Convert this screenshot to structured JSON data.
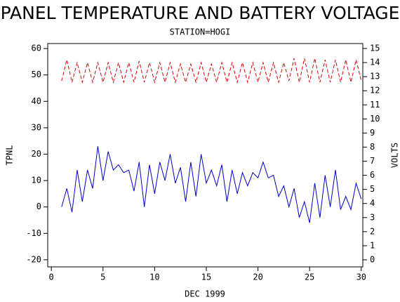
{
  "chart_data": {
    "type": "line",
    "title": "PANEL TEMPERATURE AND BATTERY VOLTAGE",
    "subtitle": "STATION=HOGI",
    "x_label": "DEC 1999",
    "y_label": "TPNL",
    "y2_label": "VOLTS",
    "x": [
      1.0,
      1.5,
      2.0,
      2.5,
      3.0,
      3.5,
      4.0,
      4.5,
      5.0,
      5.5,
      6.0,
      6.5,
      7.0,
      7.5,
      8.0,
      8.5,
      9.0,
      9.5,
      10.0,
      10.5,
      11.0,
      11.5,
      12.0,
      12.5,
      13.0,
      13.5,
      14.0,
      14.5,
      15.0,
      15.5,
      16.0,
      16.5,
      17.0,
      17.5,
      18.0,
      18.5,
      19.0,
      19.5,
      20.0,
      20.5,
      21.0,
      21.5,
      22.0,
      22.5,
      23.0,
      23.5,
      24.0,
      24.5,
      25.0,
      25.5,
      26.0,
      26.5,
      27.0,
      27.5,
      28.0,
      28.5,
      29.0,
      29.5,
      30.0
    ],
    "series": [
      {
        "name": "TPNL",
        "color": "#0000cc",
        "axis": "y",
        "dashed": false,
        "values": [
          0,
          7,
          -2,
          14,
          2,
          14,
          7,
          23,
          10,
          21,
          14,
          16,
          13,
          14,
          6,
          17,
          0,
          16,
          5,
          17,
          10,
          20,
          9,
          15,
          2,
          17,
          4,
          20,
          9,
          14,
          8,
          16,
          2,
          14,
          5,
          13,
          8,
          13,
          11,
          17,
          11,
          12,
          4,
          8,
          0,
          7,
          -4,
          2,
          -6,
          9,
          -4,
          12,
          0,
          14,
          -1,
          4,
          -1,
          9,
          3
        ]
      },
      {
        "name": "VOLTS",
        "color": "#dd0000",
        "axis": "y2",
        "dashed": true,
        "values": [
          12.7,
          14.2,
          12.6,
          14.0,
          12.6,
          14.0,
          12.6,
          14.0,
          12.6,
          14.0,
          12.6,
          14.0,
          12.6,
          14.0,
          12.6,
          14.1,
          12.6,
          14.0,
          12.6,
          14.0,
          12.6,
          14.0,
          12.6,
          13.9,
          12.6,
          13.9,
          12.6,
          14.0,
          12.6,
          13.9,
          12.6,
          14.0,
          12.6,
          14.0,
          12.6,
          14.0,
          12.6,
          14.0,
          12.6,
          14.0,
          12.6,
          14.0,
          12.6,
          14.0,
          12.7,
          14.3,
          12.6,
          14.3,
          12.6,
          14.3,
          12.6,
          14.2,
          12.6,
          14.2,
          12.6,
          14.2,
          12.6,
          14.2,
          12.7
        ]
      }
    ],
    "xlim": [
      -0.35,
      30.15
    ],
    "xticks": [
      0,
      5,
      10,
      15,
      20,
      25,
      30
    ],
    "ylim": [
      -22.7,
      61.9
    ],
    "yticks": [
      -20,
      -10,
      0,
      10,
      20,
      30,
      40,
      50,
      60
    ],
    "y2lim": [
      -0.5,
      15.35
    ],
    "y2ticks": [
      0,
      1,
      2,
      3,
      4,
      5,
      6,
      7,
      8,
      9,
      10,
      11,
      12,
      13,
      14,
      15
    ]
  }
}
